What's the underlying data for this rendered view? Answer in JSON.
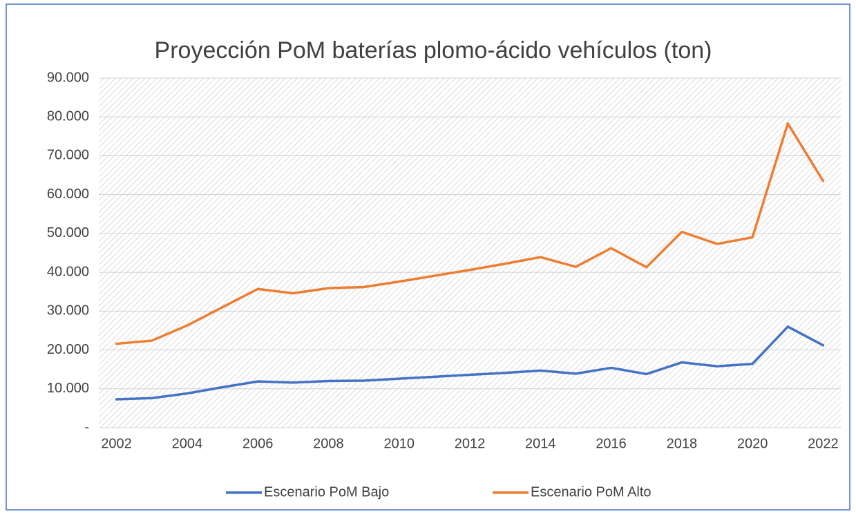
{
  "chart_data": {
    "type": "line",
    "title": "Proyección PoM baterías plomo-ácido vehículos (ton)",
    "x": [
      2002,
      2003,
      2004,
      2005,
      2006,
      2007,
      2008,
      2009,
      2010,
      2011,
      2012,
      2013,
      2014,
      2015,
      2016,
      2017,
      2018,
      2019,
      2020,
      2021,
      2022
    ],
    "xlim": [
      2001.5,
      2022.5
    ],
    "xticks": [
      2002,
      2004,
      2006,
      2008,
      2010,
      2012,
      2014,
      2016,
      2018,
      2020,
      2022
    ],
    "ylim": [
      0,
      90000
    ],
    "yticks": [
      {
        "value": 0,
        "label": "-"
      },
      {
        "value": 10000,
        "label": "10.000"
      },
      {
        "value": 20000,
        "label": "20.000"
      },
      {
        "value": 30000,
        "label": "30.000"
      },
      {
        "value": 40000,
        "label": "40.000"
      },
      {
        "value": 50000,
        "label": "50.000"
      },
      {
        "value": 60000,
        "label": "60.000"
      },
      {
        "value": 70000,
        "label": "70.000"
      },
      {
        "value": 80000,
        "label": "80.000"
      },
      {
        "value": 90000,
        "label": "90.000"
      }
    ],
    "grid": true,
    "legend": "bottom",
    "series": [
      {
        "name": "Escenario PoM Bajo",
        "color": "#4472c4",
        "values": [
          7300,
          7600,
          8800,
          10400,
          11900,
          11600,
          12000,
          12100,
          12600,
          13100,
          13600,
          14100,
          14700,
          13900,
          15400,
          13800,
          16800,
          15800,
          16400,
          26000,
          21200
        ]
      },
      {
        "name": "Escenario PoM Alto",
        "color": "#ed7d31",
        "values": [
          21600,
          22400,
          26300,
          31000,
          35700,
          34600,
          35900,
          36200,
          37600,
          39100,
          40600,
          42200,
          43900,
          41400,
          46200,
          41300,
          50400,
          47300,
          49000,
          78300,
          63500
        ]
      }
    ]
  }
}
